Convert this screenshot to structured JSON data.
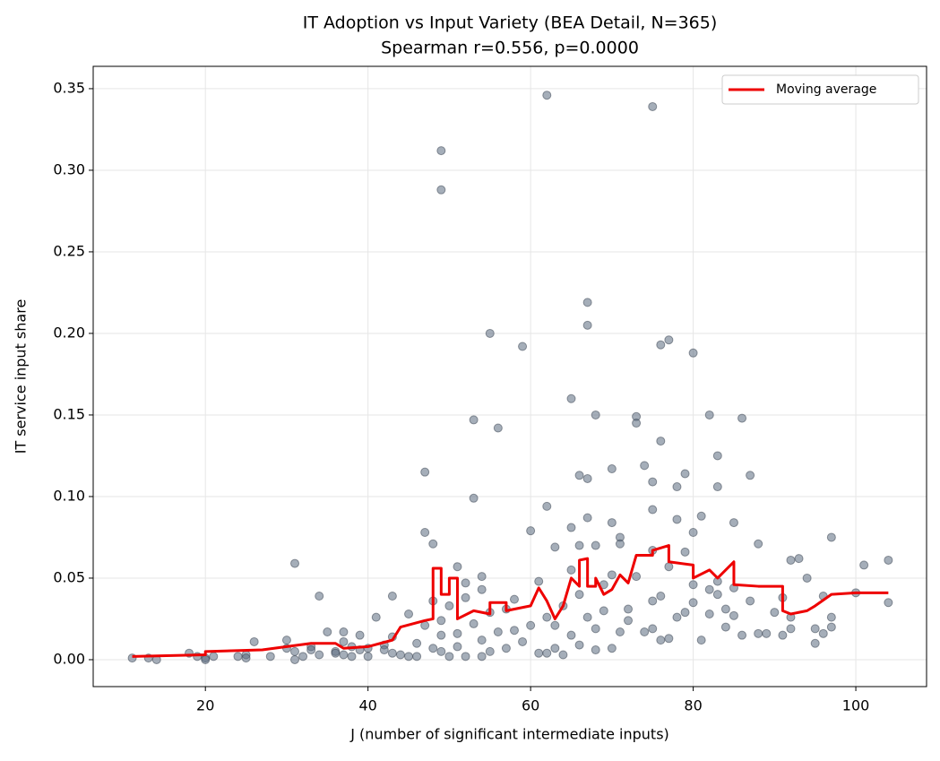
{
  "chart_data": {
    "type": "scatter",
    "title": "IT Adoption vs Input Variety (BEA Detail, N=365)",
    "subtitle": "Spearman r=0.556, p=0.0000",
    "x_label": "J (number of significant intermediate inputs)",
    "y_label": "IT service input share",
    "xlim": [
      6.2,
      108.7
    ],
    "ylim": [
      -0.0165,
      0.3637
    ],
    "xticks": [
      20,
      40,
      60,
      80,
      100
    ],
    "yticks": [
      {
        "value": 0,
        "label": "0.00"
      },
      {
        "value": 0.05,
        "label": "0.05"
      },
      {
        "value": 0.1,
        "label": "0.10"
      },
      {
        "value": 0.15,
        "label": "0.15"
      },
      {
        "value": 0.2,
        "label": "0.20"
      },
      {
        "value": 0.25,
        "label": "0.25"
      },
      {
        "value": 0.3,
        "label": "0.30"
      },
      {
        "value": 0.35,
        "label": "0.35"
      }
    ],
    "grid": true,
    "legend": "upper right",
    "points": {
      "color": "#5b6b80",
      "x": [
        11,
        13,
        14,
        18,
        19,
        20,
        20,
        21,
        24,
        25,
        25,
        26,
        28,
        30,
        30,
        31,
        31,
        31,
        32,
        33,
        33,
        34,
        34,
        35,
        36,
        36,
        37,
        37,
        37,
        38,
        38,
        39,
        39,
        40,
        40,
        41,
        42,
        42,
        43,
        43,
        43,
        44,
        45,
        45,
        46,
        46,
        47,
        47,
        47,
        48,
        48,
        48,
        49,
        49,
        49,
        49,
        49,
        50,
        50,
        51,
        51,
        51,
        52,
        52,
        52,
        53,
        53,
        53,
        54,
        54,
        54,
        54,
        55,
        55,
        55,
        56,
        56,
        57,
        57,
        58,
        58,
        59,
        59,
        60,
        60,
        61,
        61,
        62,
        62,
        62,
        62,
        63,
        63,
        63,
        64,
        64,
        65,
        65,
        65,
        65,
        66,
        66,
        66,
        66,
        67,
        67,
        67,
        67,
        67,
        68,
        68,
        68,
        68,
        69,
        69,
        70,
        70,
        70,
        70,
        71,
        71,
        71,
        72,
        72,
        73,
        73,
        73,
        74,
        74,
        75,
        75,
        75,
        75,
        75,
        75,
        76,
        76,
        76,
        76,
        77,
        77,
        77,
        78,
        78,
        78,
        79,
        79,
        79,
        80,
        80,
        80,
        80,
        81,
        81,
        82,
        82,
        82,
        83,
        83,
        83,
        83,
        84,
        84,
        85,
        85,
        85,
        86,
        86,
        87,
        87,
        88,
        88,
        89,
        90,
        91,
        91,
        92,
        92,
        92,
        93,
        94,
        95,
        95,
        96,
        96,
        97,
        97,
        97,
        100,
        101,
        104,
        104
      ],
      "values": [
        0.001,
        0.001,
        0.0,
        0.004,
        0.002,
        0.001,
        0.0,
        0.002,
        0.002,
        0.003,
        0.001,
        0.011,
        0.002,
        0.012,
        0.007,
        0.059,
        0.005,
        0.0,
        0.002,
        0.008,
        0.006,
        0.039,
        0.003,
        0.017,
        0.005,
        0.004,
        0.017,
        0.011,
        0.003,
        0.008,
        0.002,
        0.015,
        0.006,
        0.007,
        0.002,
        0.026,
        0.009,
        0.006,
        0.039,
        0.014,
        0.004,
        0.003,
        0.028,
        0.002,
        0.01,
        0.002,
        0.115,
        0.078,
        0.021,
        0.071,
        0.036,
        0.007,
        0.312,
        0.288,
        0.024,
        0.015,
        0.005,
        0.033,
        0.002,
        0.057,
        0.016,
        0.008,
        0.047,
        0.038,
        0.002,
        0.147,
        0.099,
        0.022,
        0.051,
        0.043,
        0.012,
        0.002,
        0.2,
        0.029,
        0.005,
        0.142,
        0.017,
        0.031,
        0.007,
        0.037,
        0.018,
        0.192,
        0.011,
        0.079,
        0.021,
        0.048,
        0.004,
        0.346,
        0.094,
        0.026,
        0.004,
        0.069,
        0.021,
        0.007,
        0.033,
        0.003,
        0.16,
        0.081,
        0.055,
        0.015,
        0.113,
        0.07,
        0.04,
        0.009,
        0.219,
        0.205,
        0.111,
        0.087,
        0.026,
        0.15,
        0.07,
        0.019,
        0.006,
        0.046,
        0.03,
        0.117,
        0.084,
        0.052,
        0.007,
        0.075,
        0.071,
        0.017,
        0.031,
        0.024,
        0.149,
        0.145,
        0.051,
        0.119,
        0.017,
        0.339,
        0.109,
        0.092,
        0.067,
        0.036,
        0.019,
        0.193,
        0.134,
        0.039,
        0.012,
        0.196,
        0.057,
        0.013,
        0.106,
        0.086,
        0.026,
        0.114,
        0.066,
        0.029,
        0.188,
        0.078,
        0.046,
        0.035,
        0.088,
        0.012,
        0.15,
        0.043,
        0.028,
        0.125,
        0.106,
        0.048,
        0.04,
        0.031,
        0.02,
        0.084,
        0.044,
        0.027,
        0.148,
        0.015,
        0.113,
        0.036,
        0.071,
        0.016,
        0.016,
        0.029,
        0.038,
        0.015,
        0.061,
        0.026,
        0.019,
        0.062,
        0.05,
        0.019,
        0.01,
        0.039,
        0.016,
        0.075,
        0.026,
        0.02,
        0.041,
        0.058,
        0.061,
        0.035
      ]
    },
    "series": [
      {
        "name": "Moving average",
        "color": "#ee0000",
        "x": [
          11,
          20,
          20,
          27,
          30,
          33,
          36,
          37,
          40,
          43,
          44,
          47,
          48,
          48,
          49,
          49,
          50,
          50,
          51,
          51,
          53,
          55,
          55,
          57,
          57,
          60,
          61,
          62,
          63,
          64,
          65,
          66,
          66,
          67,
          67,
          68,
          68,
          69,
          70,
          71,
          72,
          73,
          75,
          75,
          77,
          77,
          80,
          80,
          82,
          83,
          85,
          85,
          88,
          91,
          91,
          92,
          94,
          95,
          97,
          100,
          104
        ],
        "values": [
          0.002,
          0.003,
          0.005,
          0.006,
          0.008,
          0.01,
          0.01,
          0.007,
          0.008,
          0.012,
          0.02,
          0.024,
          0.025,
          0.056,
          0.056,
          0.04,
          0.04,
          0.05,
          0.05,
          0.025,
          0.03,
          0.028,
          0.035,
          0.035,
          0.03,
          0.033,
          0.044,
          0.036,
          0.025,
          0.033,
          0.05,
          0.045,
          0.061,
          0.062,
          0.045,
          0.045,
          0.05,
          0.04,
          0.043,
          0.052,
          0.047,
          0.064,
          0.064,
          0.067,
          0.07,
          0.06,
          0.058,
          0.05,
          0.055,
          0.05,
          0.06,
          0.046,
          0.045,
          0.045,
          0.03,
          0.028,
          0.03,
          0.033,
          0.04,
          0.041,
          0.041
        ]
      }
    ]
  }
}
